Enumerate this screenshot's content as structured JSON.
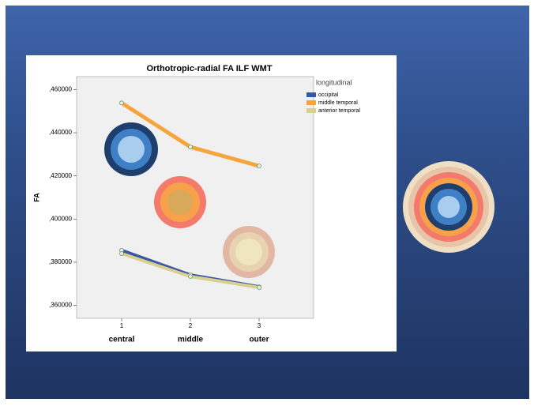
{
  "chart_data": {
    "type": "line",
    "title": "Orthotropic-radial FA ILF WMT",
    "y_label": "FA",
    "categories": [
      "1",
      "2",
      "3"
    ],
    "category_names": [
      "central",
      "middle",
      "outer"
    ],
    "legend_title": "longitudinal",
    "series": [
      {
        "name": "occipital",
        "color": "#3b55a8",
        "values": [
          0.3855,
          0.3741,
          0.3686
        ]
      },
      {
        "name": "middle temporal",
        "color": "#f5a53c",
        "values": [
          0.4538,
          0.4334,
          0.4246
        ]
      },
      {
        "name": "anterior temporal",
        "color": "#d8d08e",
        "values": [
          0.384,
          0.3734,
          0.3683
        ]
      }
    ],
    "ylim": [
      0.354,
      0.466
    ],
    "yticks": [
      {
        "value": 0.36,
        "label": ",360000"
      },
      {
        "value": 0.38,
        "label": ",380000"
      },
      {
        "value": 0.4,
        "label": ",400000"
      },
      {
        "value": 0.42,
        "label": ",420000"
      },
      {
        "value": 0.44,
        "label": ",440000"
      },
      {
        "value": 0.46,
        "label": ",460000"
      }
    ],
    "legend_position": "right"
  }
}
